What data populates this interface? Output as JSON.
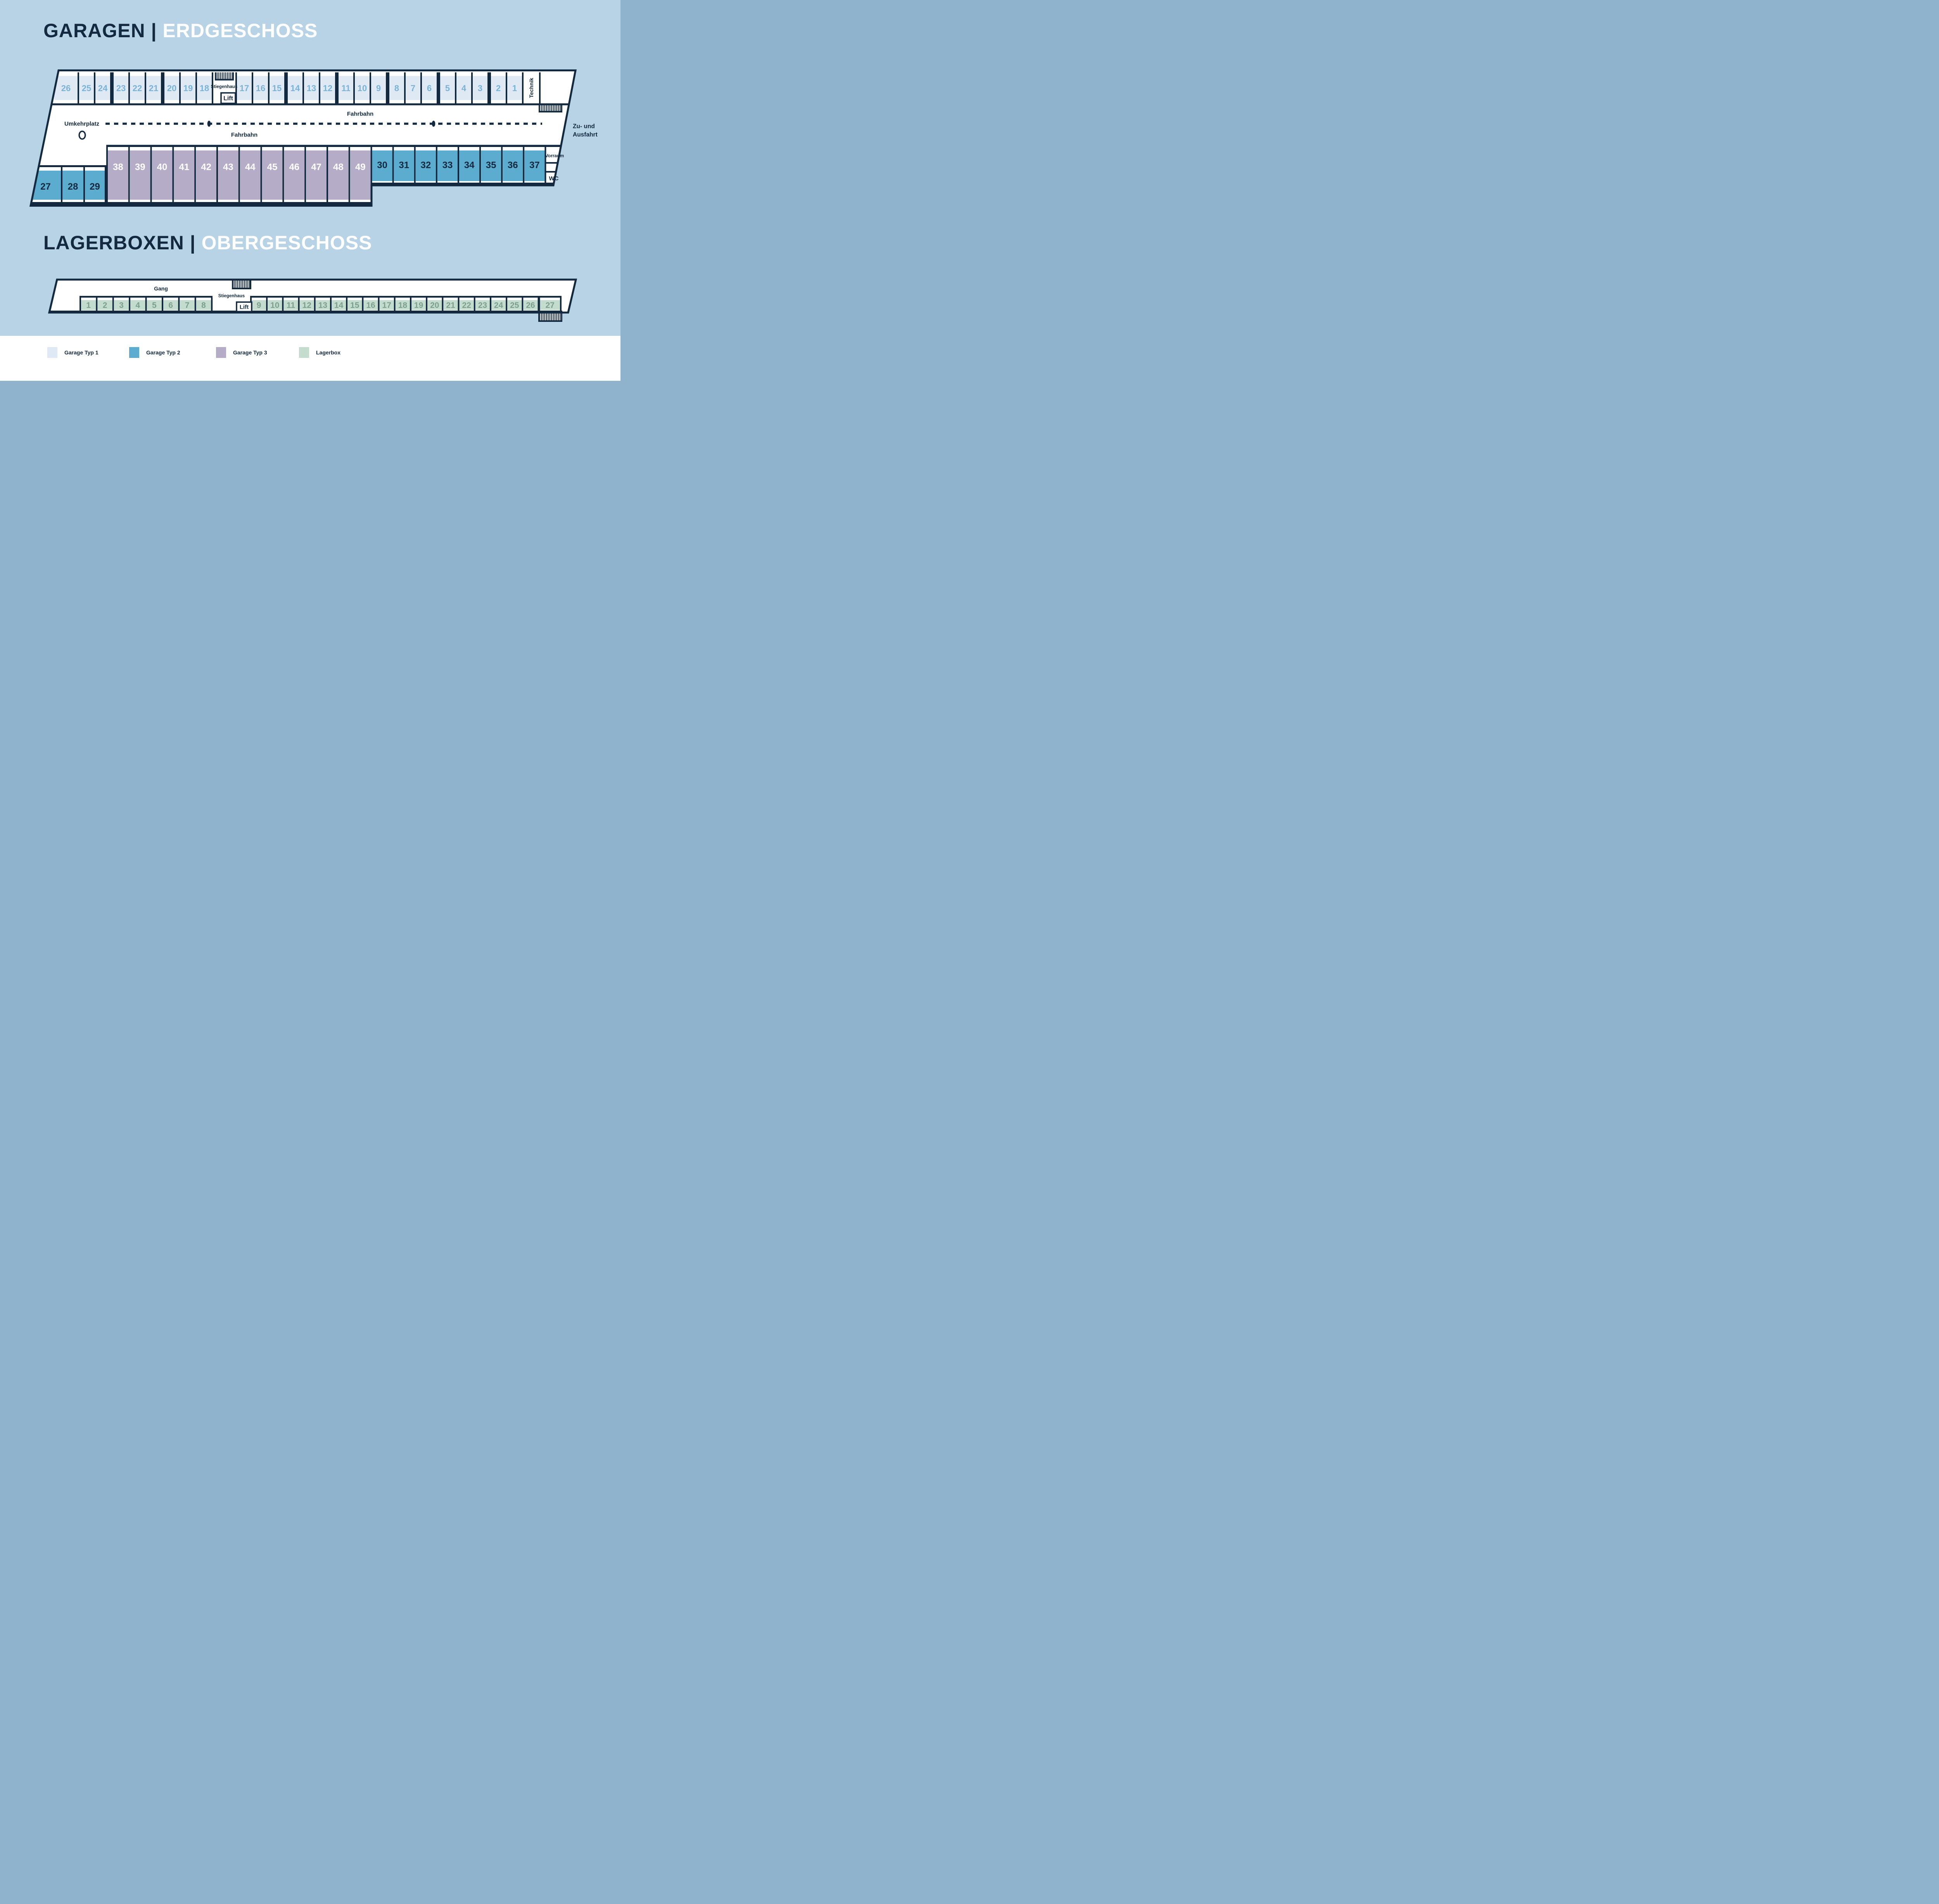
{
  "colors": {
    "background": "#b8d3e6",
    "plan_white": "#ffffff",
    "navy": "#13293f",
    "typ1": "#dfe9f4",
    "typ1_num": "#7ab3d8",
    "typ2": "#5caccf",
    "typ2_num": "#13304a",
    "typ3": "#b5adc8",
    "typ3_num": "#ffffff",
    "lagerbox": "#c3dcce",
    "lagerbox_num": "#7e9e8f"
  },
  "titles": {
    "garagen_left": "GARAGEN",
    "garagen_divider": "|",
    "garagen_right": "ERDGESCHOSS",
    "lager_left": "LAGERBOXEN",
    "lager_divider": "|",
    "lager_right": "OBERGESCHOSS"
  },
  "garagen": {
    "top_row": [
      "26",
      "25",
      "24",
      "23",
      "22",
      "21",
      "20",
      "19",
      "18",
      "17",
      "16",
      "15",
      "14",
      "13",
      "12",
      "11",
      "10",
      "9",
      "8",
      "7",
      "6",
      "5",
      "4",
      "3",
      "2",
      "1"
    ],
    "typ3_row": [
      "38",
      "39",
      "40",
      "41",
      "42",
      "43",
      "44",
      "45",
      "46",
      "47",
      "48",
      "49"
    ],
    "typ2_row": [
      "30",
      "31",
      "32",
      "33",
      "34",
      "35",
      "36",
      "37"
    ],
    "typ2_left": [
      "27",
      "28",
      "29"
    ],
    "labels": {
      "stiegenhaus": "Stiegenhaus",
      "lift": "Lift",
      "technik": "Technik",
      "fahrbahn": "Fahrbahn",
      "umkehrplatz": "Umkehrplatz",
      "zufahrt_line1": "Zu- und",
      "zufahrt_line2": "Ausfahrt",
      "vorraum": "Vorraum",
      "wc": "WC"
    }
  },
  "lagerboxen": {
    "row_left": [
      "1",
      "2",
      "3",
      "4",
      "5",
      "6",
      "7",
      "8"
    ],
    "row_right": [
      "9",
      "10",
      "11",
      "12",
      "13",
      "14",
      "15",
      "16",
      "17",
      "18",
      "19",
      "20",
      "21",
      "22",
      "23",
      "24",
      "25",
      "26",
      "27"
    ],
    "labels": {
      "gang": "Gang",
      "stiegenhaus": "Stiegenhaus",
      "lift": "Lift"
    }
  },
  "legend": {
    "items": [
      {
        "label": "Garage Typ 1",
        "color_key": "typ1"
      },
      {
        "label": "Garage Typ 2",
        "color_key": "typ2"
      },
      {
        "label": "Garage Typ 3",
        "color_key": "typ3"
      },
      {
        "label": "Lagerbox",
        "color_key": "lagerbox"
      }
    ]
  }
}
